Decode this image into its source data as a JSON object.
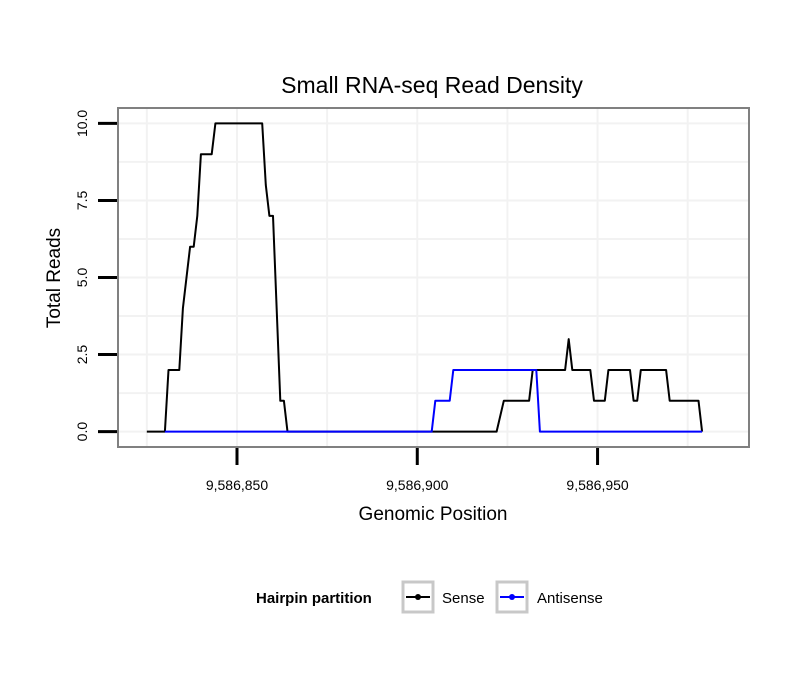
{
  "chart_data": {
    "type": "line",
    "title": "Small RNA-seq Read Density",
    "xlabel": "Genomic Position",
    "ylabel": "Total Reads",
    "xlim": [
      9586817,
      9586992
    ],
    "ylim": [
      -0.5,
      10.5
    ],
    "x_ticks": [
      9586850,
      9586900,
      9586950
    ],
    "x_tick_labels": [
      "9,586,850",
      "9,586,900",
      "9,586,950"
    ],
    "y_ticks": [
      0,
      2.5,
      5,
      7.5,
      10
    ],
    "y_tick_labels": [
      "0.0",
      "2.5",
      "5.0",
      "7.5",
      "10.0"
    ],
    "grid": true,
    "legend": {
      "title": "Hairpin partition",
      "position": "bottom",
      "entries": [
        "Sense",
        "Antisense"
      ]
    },
    "series": [
      {
        "name": "Sense",
        "color": "#000000",
        "points": [
          [
            9586825,
            0
          ],
          [
            9586830,
            0
          ],
          [
            9586831,
            2
          ],
          [
            9586834,
            2
          ],
          [
            9586835,
            4
          ],
          [
            9586837,
            6
          ],
          [
            9586838,
            6
          ],
          [
            9586839,
            7
          ],
          [
            9586840,
            9
          ],
          [
            9586843,
            9
          ],
          [
            9586844,
            10
          ],
          [
            9586857,
            10
          ],
          [
            9586858,
            8
          ],
          [
            9586859,
            7
          ],
          [
            9586860,
            7
          ],
          [
            9586862,
            1
          ],
          [
            9586863,
            1
          ],
          [
            9586864,
            0
          ],
          [
            9586922,
            0
          ],
          [
            9586924,
            1
          ],
          [
            9586931,
            1
          ],
          [
            9586932,
            2
          ],
          [
            9586941,
            2
          ],
          [
            9586942,
            3
          ],
          [
            9586943,
            2
          ],
          [
            9586948,
            2
          ],
          [
            9586949,
            1
          ],
          [
            9586952,
            1
          ],
          [
            9586953,
            2
          ],
          [
            9586959,
            2
          ],
          [
            9586960,
            1
          ],
          [
            9586961,
            1
          ],
          [
            9586962,
            2
          ],
          [
            9586969,
            2
          ],
          [
            9586970,
            1
          ],
          [
            9586978,
            1
          ],
          [
            9586979,
            0
          ]
        ]
      },
      {
        "name": "Antisense",
        "color": "#0000ff",
        "points": [
          [
            9586830,
            0
          ],
          [
            9586904,
            0
          ],
          [
            9586905,
            1
          ],
          [
            9586909,
            1
          ],
          [
            9586910,
            2
          ],
          [
            9586932,
            2
          ],
          [
            9586933,
            2
          ],
          [
            9586934,
            0
          ],
          [
            9586979,
            0
          ]
        ]
      }
    ]
  }
}
